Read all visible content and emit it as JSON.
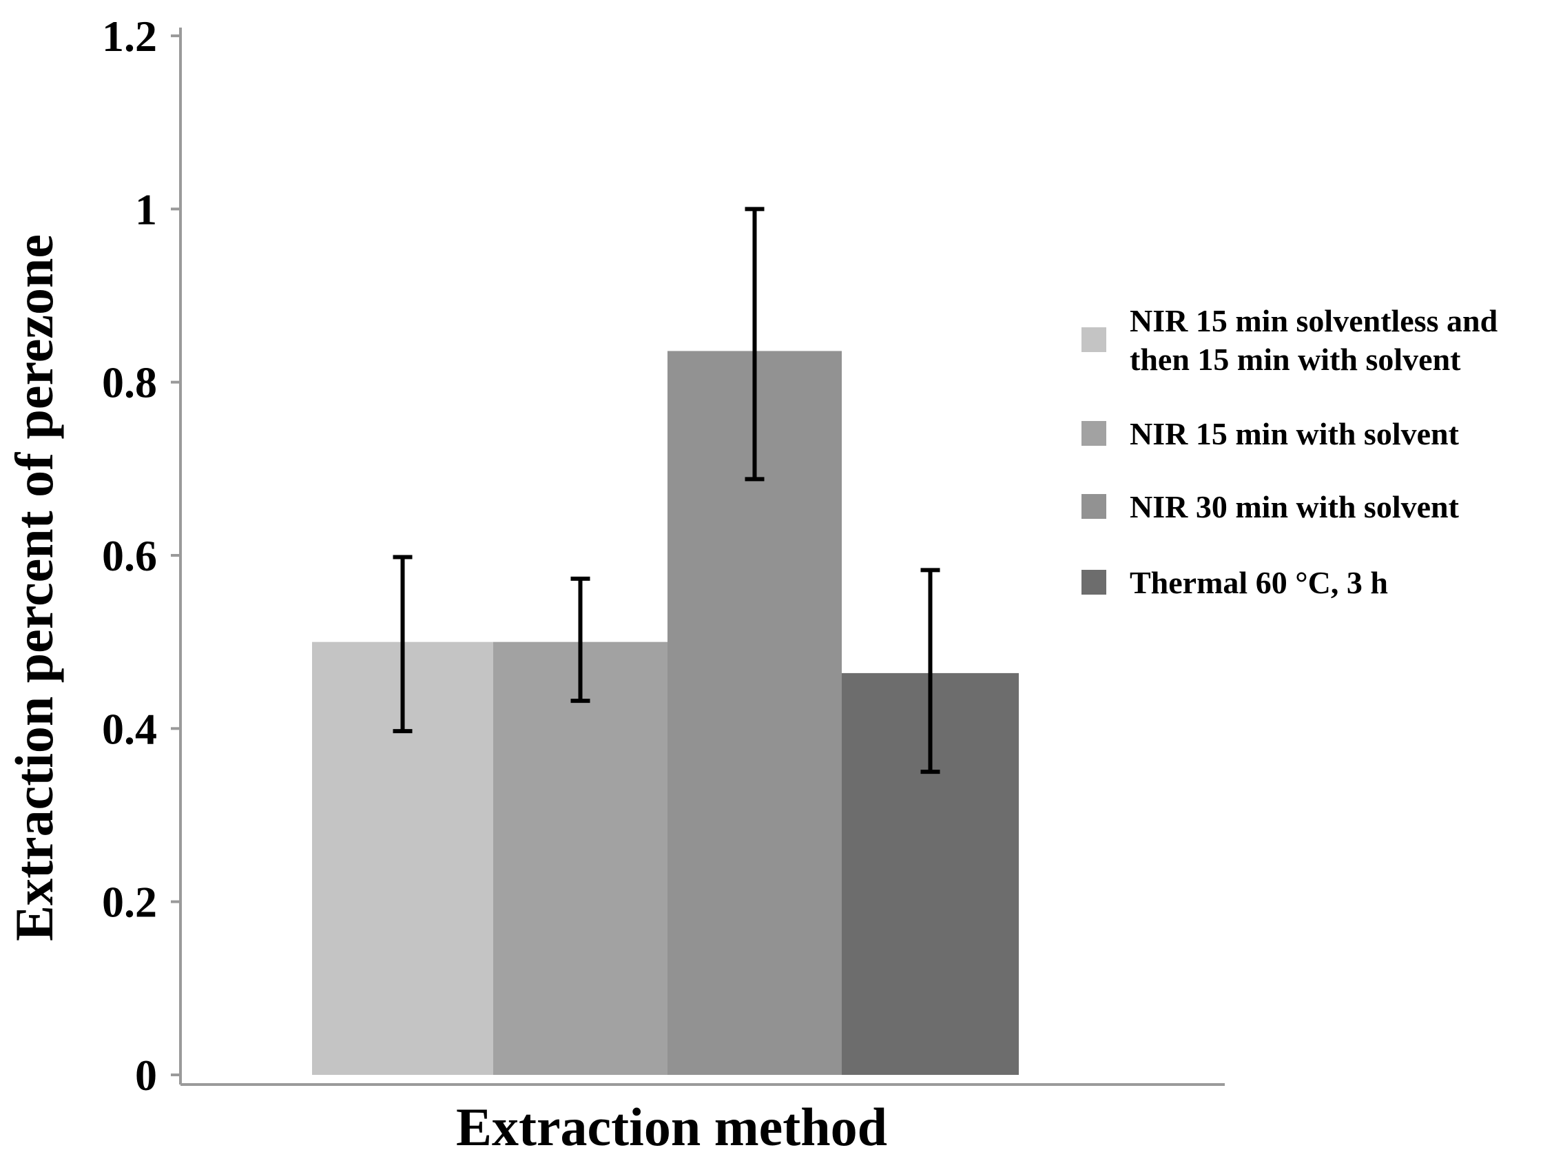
{
  "chart_data": {
    "type": "bar",
    "title": "",
    "xlabel": "Extraction method",
    "ylabel": "Extraction percent of perezone",
    "ylim": [
      0,
      1.2
    ],
    "yticks": [
      0,
      0.2,
      0.4,
      0.6,
      0.8,
      1,
      1.2
    ],
    "ytick_labels": [
      "0",
      "0.2",
      "0.4",
      "0.6",
      "0.8",
      "1",
      "1.2"
    ],
    "grid": false,
    "legend_position": "right",
    "series": [
      {
        "name": "NIR 15 min solventless and then 15 min with solvent",
        "legend_lines": [
          "NIR 15 min solventless and",
          "then 15 min with solvent"
        ],
        "value": 0.5,
        "error_low": 0.397,
        "error_high": 0.598,
        "color": "#c4c4c4"
      },
      {
        "name": "NIR 15 min with solvent",
        "legend_lines": [
          "NIR 15 min with solvent"
        ],
        "value": 0.5,
        "error_low": 0.432,
        "error_high": 0.573,
        "color": "#a2a2a2"
      },
      {
        "name": "NIR 30 min with solvent",
        "legend_lines": [
          "NIR 30 min with solvent"
        ],
        "value": 0.836,
        "error_low": 0.688,
        "error_high": 1.0,
        "color": "#929292"
      },
      {
        "name": "Thermal 60 °C, 3 h",
        "legend_lines": [
          "Thermal 60 °C, 3 h"
        ],
        "value": 0.464,
        "error_low": 0.35,
        "error_high": 0.583,
        "color": "#6d6d6d"
      }
    ]
  }
}
